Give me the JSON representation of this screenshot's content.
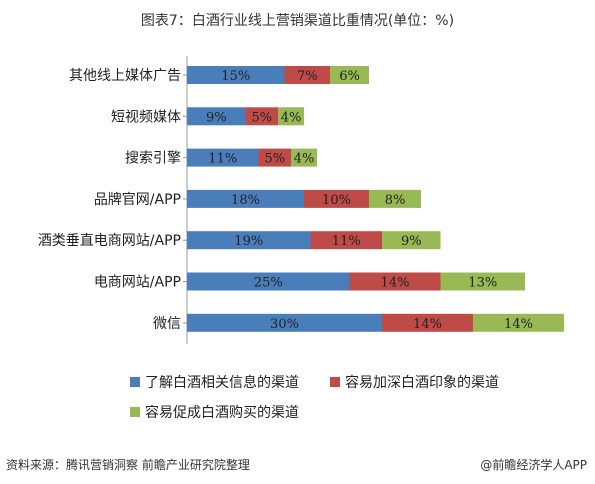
{
  "title": "图表7：白酒行业线上营销渠道比重情况(单位：%)",
  "source": "资料来源：腾讯营销洞察 前瞻产业研究院整理",
  "brand": "@前瞻经济学人APP",
  "chart_data": {
    "type": "bar",
    "orientation": "horizontal",
    "stacked": true,
    "categories": [
      "其他线上媒体广告",
      "短视频媒体",
      "搜索引擎",
      "品牌官网/APP",
      "酒类垂直电商网站/APP",
      "电商网站/APP",
      "微信"
    ],
    "series": [
      {
        "name": "了解白酒相关信息的渠道",
        "color": "#4a7ebb",
        "values": [
          15,
          9,
          11,
          18,
          19,
          25,
          30
        ],
        "labels": [
          "15%",
          "9%",
          "11%",
          "18%",
          "19%",
          "25%",
          "30%"
        ]
      },
      {
        "name": "容易加深白酒印象的渠道",
        "color": "#be4b48",
        "values": [
          7,
          5,
          5,
          10,
          11,
          14,
          14
        ],
        "labels": [
          "7%",
          "5%",
          "5%",
          "10%",
          "11%",
          "14%",
          "14%"
        ]
      },
      {
        "name": "容易促成白酒购买的渠道",
        "color": "#98b954",
        "values": [
          6,
          4,
          4,
          8,
          9,
          13,
          14
        ],
        "labels": [
          "6%",
          "4%",
          "4%",
          "8%",
          "9%",
          "13%",
          "14%"
        ]
      }
    ],
    "legend_position": "bottom",
    "grid": false
  }
}
